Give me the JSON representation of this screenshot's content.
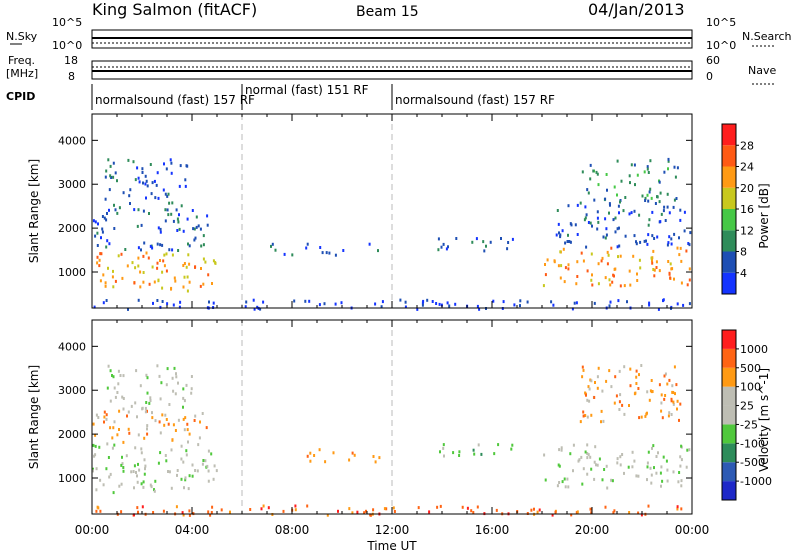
{
  "header": {
    "station": "King Salmon (fitACF)",
    "beam": "Beam 15",
    "date": "04/Jan/2013"
  },
  "top_panels": {
    "nsky": {
      "left_label": "N.Sky",
      "ticks_left": [
        "10^5",
        "10^0"
      ],
      "right_label": "N.Search",
      "ticks_right": [
        "10^5",
        "10^0"
      ]
    },
    "freq": {
      "left_label_1": "Freq.",
      "left_label_2": "[MHz]",
      "ticks_left": [
        "18",
        "8"
      ],
      "right_label": "Nave",
      "ticks_right": [
        "60",
        "0"
      ]
    },
    "cpid": {
      "label": "CPID",
      "segments": [
        {
          "text": "normalsound (fast) 157 RF",
          "start_hour": 0,
          "end_hour": 6
        },
        {
          "text": "normal (fast) 151 RF",
          "start_hour": 6,
          "end_hour": 12
        },
        {
          "text": "normalsound (fast) 157 RF",
          "start_hour": 12,
          "end_hour": 24
        }
      ]
    }
  },
  "chart_data": [
    {
      "type": "heatmap",
      "name": "Power",
      "ylabel": "Slant Range [km]",
      "xlim_hours": [
        0,
        24
      ],
      "ylim": [
        180,
        4600
      ],
      "yticks": [
        1000,
        2000,
        3000,
        4000
      ],
      "colorbar_label": "Power [dB]",
      "colorbar_ticks": [
        "28",
        "24",
        "20",
        "16",
        "12",
        "8",
        "4"
      ],
      "colors": [
        "#1434ff",
        "#1e4fb4",
        "#2f8c5a",
        "#46c846",
        "#c8c81e",
        "#ff9a14",
        "#ff5a14",
        "#ff1e1e"
      ],
      "regions": [
        {
          "t": [
            0.0,
            5.0
          ],
          "r": [
            600,
            1500
          ],
          "level": 5
        },
        {
          "t": [
            0.0,
            4.6
          ],
          "r": [
            1500,
            2500
          ],
          "level": 1
        },
        {
          "t": [
            0.5,
            4.0
          ],
          "r": [
            2500,
            3600
          ],
          "level": 1
        },
        {
          "t": [
            6.8,
            8.2
          ],
          "r": [
            1400,
            1700
          ],
          "level": 1
        },
        {
          "t": [
            8.5,
            11.5
          ],
          "r": [
            1400,
            1700
          ],
          "level": 1
        },
        {
          "t": [
            13.5,
            16.8
          ],
          "r": [
            1500,
            1800
          ],
          "level": 1
        },
        {
          "t": [
            18.0,
            24.0
          ],
          "r": [
            700,
            1600
          ],
          "level": 5
        },
        {
          "t": [
            18.5,
            24.0
          ],
          "r": [
            1600,
            2600
          ],
          "level": 1
        },
        {
          "t": [
            19.5,
            23.5
          ],
          "r": [
            2600,
            3600
          ],
          "level": 2
        },
        {
          "t": [
            0.0,
            24.0
          ],
          "r": [
            180,
            400
          ],
          "level": 0
        }
      ]
    },
    {
      "type": "heatmap",
      "name": "Velocity",
      "ylabel": "Slant Range [km]",
      "xlim_hours": [
        0,
        24
      ],
      "ylim": [
        180,
        4600
      ],
      "yticks": [
        1000,
        2000,
        3000,
        4000
      ],
      "xticks": [
        "00:00",
        "04:00",
        "08:00",
        "12:00",
        "16:00",
        "20:00",
        "00:00"
      ],
      "xlabel": "Time UT",
      "colorbar_label": "Velocity [m s^-1]",
      "colorbar_ticks": [
        "1000",
        "500",
        "100",
        "25",
        "-25",
        "-100",
        "-500",
        "-1000"
      ],
      "colors": [
        "#1e28c8",
        "#2d5ab4",
        "#2d8c5a",
        "#50c83c",
        "#bebeb4",
        "#bebeb4",
        "#ff9a14",
        "#ff6414",
        "#ff1e1e"
      ],
      "regions": [
        {
          "t": [
            0.0,
            5.0
          ],
          "r": [
            700,
            1800
          ],
          "level": 4
        },
        {
          "t": [
            0.0,
            4.6
          ],
          "r": [
            1800,
            2600
          ],
          "level": 6
        },
        {
          "t": [
            0.5,
            4.0
          ],
          "r": [
            2600,
            3600
          ],
          "level": 4
        },
        {
          "t": [
            8.5,
            11.5
          ],
          "r": [
            1400,
            1700
          ],
          "level": 6
        },
        {
          "t": [
            13.5,
            16.8
          ],
          "r": [
            1500,
            1800
          ],
          "level": 3
        },
        {
          "t": [
            18.0,
            24.0
          ],
          "r": [
            800,
            1800
          ],
          "level": 4
        },
        {
          "t": [
            19.5,
            23.5
          ],
          "r": [
            2300,
            3600
          ],
          "level": 6
        },
        {
          "t": [
            0.0,
            24.0
          ],
          "r": [
            180,
            400
          ],
          "level": 7
        }
      ]
    }
  ]
}
